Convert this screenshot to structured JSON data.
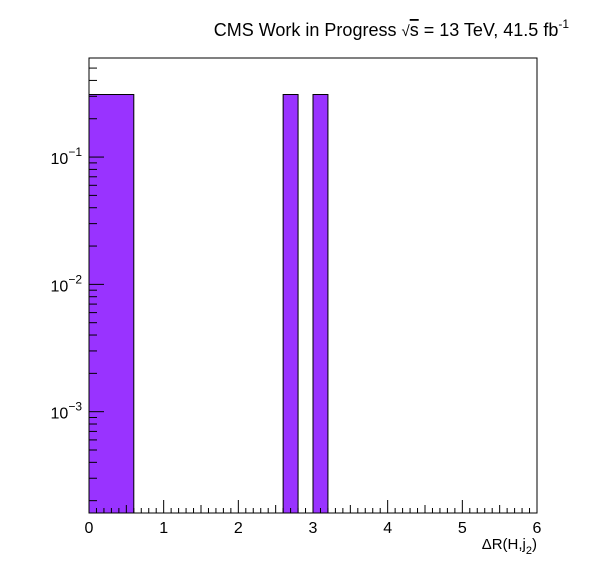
{
  "chart_data": {
    "type": "bar",
    "title": {
      "prefix": "CMS Work in Progress  ",
      "sqrt": "√",
      "s": "s",
      "middle": " = 13 TeV, 41.5 fb",
      "sup": "-1"
    },
    "xlabel": {
      "main": "ΔR(H,j",
      "sub": "2",
      "close": ")"
    },
    "ylabel": "",
    "x_range": [
      0,
      6
    ],
    "y_range": [
      0.00016,
      0.6
    ],
    "y_scale": "log",
    "grid": false,
    "x_ticks": [
      {
        "value": 0,
        "label": "0"
      },
      {
        "value": 1,
        "label": "1"
      },
      {
        "value": 2,
        "label": "2"
      },
      {
        "value": 3,
        "label": "3"
      },
      {
        "value": 4,
        "label": "4"
      },
      {
        "value": 5,
        "label": "5"
      },
      {
        "value": 6,
        "label": "6"
      }
    ],
    "y_ticks": [
      {
        "value": 0.1,
        "base": "10",
        "exp": "−1"
      },
      {
        "value": 0.01,
        "base": "10",
        "exp": "−2"
      },
      {
        "value": 0.001,
        "base": "10",
        "exp": "−3"
      }
    ],
    "bins": [
      {
        "x0": 0.0,
        "x1": 0.6,
        "value": 0.31
      },
      {
        "x0": 2.6,
        "x1": 2.8,
        "value": 0.31
      },
      {
        "x0": 3.0,
        "x1": 3.2,
        "value": 0.31
      }
    ],
    "fill_color": "#9933ff",
    "edge_color": "#000000"
  }
}
